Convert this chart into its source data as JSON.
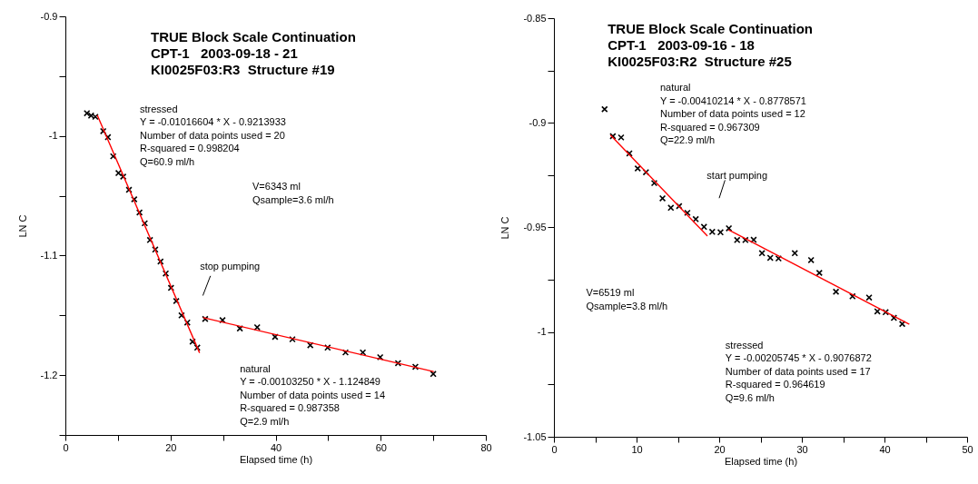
{
  "chart_data": [
    {
      "type": "scatter",
      "title": "TRUE Block Scale Continuation\nCPT-1   2003-09-18 - 21\nKI0025F03:R3  Structure #19",
      "xlabel": "Elapsed time (h)",
      "ylabel": "LN C",
      "xlim": [
        0,
        80
      ],
      "ylim": [
        -1.25,
        -0.9
      ],
      "xticks": [
        0,
        {
          "value": 10,
          "label": null
        },
        20,
        {
          "value": 30,
          "label": null
        },
        40,
        {
          "value": 50,
          "label": null
        },
        60,
        {
          "value": 70,
          "label": null
        },
        80
      ],
      "yticks": [
        {
          "value": -1.25,
          "label": null
        },
        -1.2,
        {
          "value": -1.15,
          "label": null
        },
        -1.1,
        {
          "value": -1.05,
          "label": null
        },
        -1,
        {
          "value": -0.95,
          "label": null
        },
        -0.9
      ],
      "grid": false,
      "marker": "cross",
      "series": [
        {
          "type": "scatter",
          "color": "#000000",
          "x": [
            4.1,
            4.9,
            5.7,
            7.2,
            8.1,
            9.1,
            10.1,
            11.0,
            12.1,
            13.1,
            14.1,
            15.1,
            16.1,
            17.1,
            18.1,
            19.1,
            20.1,
            21.1,
            22.1,
            23.2,
            24.2,
            25.1,
            26.6,
            29.9,
            33.2,
            36.5,
            39.9,
            43.2,
            46.6,
            49.9,
            53.3,
            56.6,
            59.9,
            63.3,
            66.6,
            70.0
          ],
          "values": [
            -0.981,
            -0.983,
            -0.984,
            -0.996,
            -1.001,
            -1.017,
            -1.031,
            -1.034,
            -1.045,
            -1.053,
            -1.064,
            -1.073,
            -1.087,
            -1.095,
            -1.105,
            -1.115,
            -1.127,
            -1.138,
            -1.15,
            -1.156,
            -1.172,
            -1.177,
            -1.153,
            -1.154,
            -1.161,
            -1.16,
            -1.168,
            -1.17,
            -1.175,
            -1.177,
            -1.181,
            -1.181,
            -1.185,
            -1.19,
            -1.193,
            -1.199
          ]
        },
        {
          "type": "line",
          "marker": "none",
          "color": "#ff0000",
          "x": [
            6.1,
            25.5
          ],
          "values": [
            -0.983,
            -1.181
          ]
        },
        {
          "type": "line",
          "marker": "none",
          "color": "#ff0000",
          "x": [
            26.3,
            70.0
          ],
          "values": [
            -1.152,
            -1.197
          ]
        }
      ],
      "annotations": [
        "stressed\nY = -0.01016604 * X - 0.9213933\nNumber of data points used = 20\nR-squared = 0.998204\nQ=60.9 ml/h",
        "V=6343 ml\nQsample=3.6 ml/h",
        "stop pumping",
        "natural\nY = -0.00103250 * X - 1.124849\nNumber of data points used = 14\nR-squared = 0.987358\nQ=2.9 ml/h"
      ]
    },
    {
      "type": "scatter",
      "title": "TRUE Block Scale Continuation\nCPT-1   2003-09-16 - 18\nKI0025F03:R2  Structure #25",
      "xlabel": "Elapsed time (h)",
      "ylabel": "LN C",
      "xlim": [
        0,
        50
      ],
      "ylim": [
        -1.05,
        -0.85
      ],
      "xticks": [
        0,
        {
          "value": 5,
          "label": null
        },
        10,
        {
          "value": 15,
          "label": null
        },
        20,
        {
          "value": 25,
          "label": null
        },
        30,
        {
          "value": 35,
          "label": null
        },
        40,
        {
          "value": 45,
          "label": null
        },
        50
      ],
      "yticks": [
        -1.05,
        {
          "value": -1.025,
          "label": null
        },
        -1,
        {
          "value": -0.975,
          "label": null
        },
        -0.95,
        {
          "value": -0.925,
          "label": null
        },
        -0.9,
        {
          "value": -0.875,
          "label": null
        },
        -0.85
      ],
      "grid": false,
      "marker": "cross",
      "series": [
        {
          "type": "scatter",
          "color": "#000000",
          "x": [
            6.13,
            7.13,
            8.13,
            9.13,
            10.14,
            11.14,
            12.14,
            13.14,
            14.15,
            15.15,
            16.15,
            17.16,
            18.16,
            19.16,
            20.16,
            21.17,
            22.17,
            23.17,
            24.17,
            25.18,
            26.18,
            27.18,
            29.15,
            31.12,
            32.12,
            34.13,
            36.13,
            38.14,
            39.14,
            40.14,
            41.14,
            42.15
          ],
          "values": [
            -0.8935,
            -0.9064,
            -0.907,
            -0.9146,
            -0.9218,
            -0.9236,
            -0.9288,
            -0.9361,
            -0.9406,
            -0.9398,
            -0.943,
            -0.946,
            -0.9497,
            -0.9521,
            -0.9523,
            -0.9504,
            -0.956,
            -0.956,
            -0.9559,
            -0.9623,
            -0.9645,
            -0.9648,
            -0.9623,
            -0.9656,
            -0.9717,
            -0.9807,
            -0.9829,
            -0.9835,
            -0.9901,
            -0.9905,
            -0.9932,
            -0.9961
          ]
        },
        {
          "type": "line",
          "marker": "none",
          "color": "#ff0000",
          "x": [
            6.87,
            18.53
          ],
          "values": [
            -0.906,
            -0.9539
          ]
        },
        {
          "type": "line",
          "marker": "none",
          "color": "#ff0000",
          "x": [
            21.17,
            42.96
          ],
          "values": [
            -0.9512,
            -0.9961
          ]
        }
      ],
      "annotations": [
        "natural\nY = -0.00410214 * X - 0.8778571\nNumber of data points used = 12\nR-squared = 0.967309\nQ=22.9 ml/h",
        "start pumping",
        "V=6519 ml\nQsample=3.8 ml/h",
        "stressed\nY = -0.00205745 * X - 0.9076872\nNumber of data points used = 17\nR-squared = 0.964619\nQ=9.6 ml/h"
      ]
    }
  ]
}
